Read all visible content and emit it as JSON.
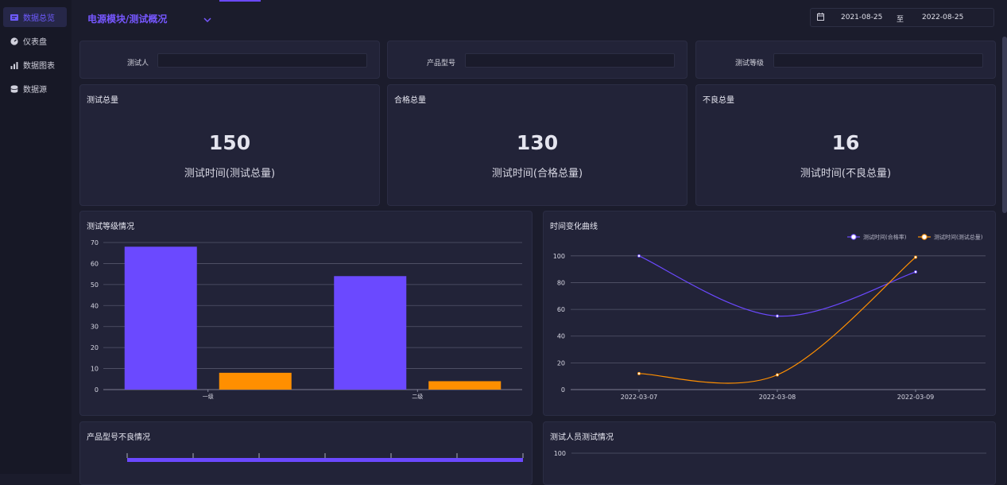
{
  "sidebar": {
    "items": [
      {
        "label": "数据总览",
        "icon": "overview-icon",
        "active": true
      },
      {
        "label": "仪表盘",
        "icon": "dashboard-icon",
        "active": false
      },
      {
        "label": "数据图表",
        "icon": "chart-icon",
        "active": false
      },
      {
        "label": "数据源",
        "icon": "database-icon",
        "active": false
      }
    ]
  },
  "header": {
    "title": "电源模块/测试概况",
    "date_from": "2021-08-25",
    "date_sep": "至",
    "date_to": "2022-08-25"
  },
  "filters": {
    "tester_label": "测试人",
    "model_label": "产品型号",
    "grade_label": "测试等级"
  },
  "stats": [
    {
      "title": "测试总量",
      "value": "150",
      "sub": "测试时间(测试总量)"
    },
    {
      "title": "合格总量",
      "value": "130",
      "sub": "测试时间(合格总量)"
    },
    {
      "title": "不良总量",
      "value": "16",
      "sub": "测试时间(不良总量)"
    }
  ],
  "panels": {
    "grade_title": "测试等级情况",
    "trend_title": "时间变化曲线",
    "defect_title": "产品型号不良情况",
    "personnel_title": "测试人员测试情况"
  },
  "colors": {
    "purple": "#6b49ff",
    "orange": "#ff8f00",
    "accent": "#7657ff"
  },
  "chart_data": [
    {
      "type": "bar",
      "title": "测试等级情况",
      "categories": [
        "一级",
        "二级"
      ],
      "series": [
        {
          "values": [
            68,
            54
          ]
        },
        {
          "values": [
            8,
            4
          ]
        }
      ],
      "ylim": [
        0,
        70
      ],
      "yticks": [
        0,
        10,
        20,
        30,
        40,
        50,
        60,
        70
      ],
      "grid": true
    },
    {
      "type": "line",
      "title": "时间变化曲线",
      "x": [
        "2022-03-07",
        "2022-03-08",
        "2022-03-09"
      ],
      "series": [
        {
          "name": "测试时间(合格率)",
          "values": [
            100,
            55,
            88
          ]
        },
        {
          "name": "测试时间(测试总量)",
          "values": [
            12,
            11,
            99
          ]
        }
      ],
      "ylim": [
        0,
        110
      ],
      "yticks": [
        0,
        20,
        40,
        60,
        80,
        100
      ],
      "legend": "top-right",
      "grid": true
    },
    {
      "type": "line",
      "title": "测试人员测试情况",
      "yticks": [
        100
      ]
    }
  ]
}
